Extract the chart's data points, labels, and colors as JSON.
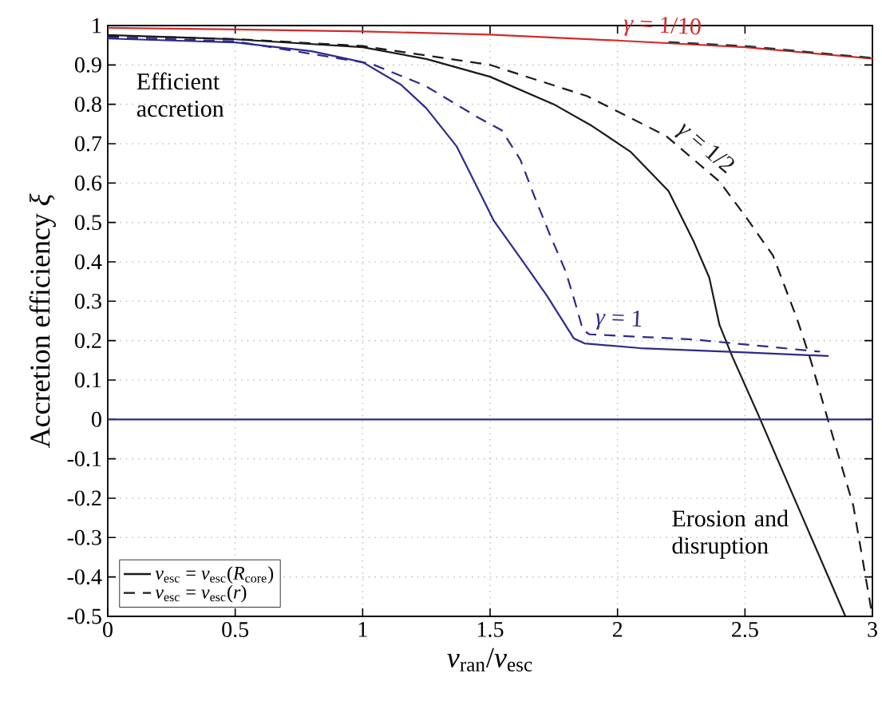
{
  "chart_data": {
    "type": "line",
    "xlabel": "*v*$_{ran}$/*v*$_{esc}$",
    "ylabel": "Accretion efficiency *ξ*",
    "xlim": [
      0,
      3
    ],
    "ylim": [
      -0.5,
      1.0
    ],
    "xticks": [
      0,
      0.5,
      1,
      1.5,
      2,
      2.5,
      3
    ],
    "yticks": [
      -0.5,
      -0.4,
      -0.3,
      -0.2,
      -0.1,
      0,
      0.1,
      0.2,
      0.3,
      0.4,
      0.5,
      0.6,
      0.7,
      0.8,
      0.9,
      1
    ],
    "grid": true,
    "legend": "bottom left",
    "series": [
      {
        "color": "#d42a2a",
        "x": [
          0,
          0.5,
          1,
          1.5,
          2,
          2.5,
          3
        ],
        "values": [
          0.994,
          0.99,
          0.985,
          0.977,
          0.962,
          0.945,
          0.916
        ]
      },
      {
        "color": "#333333",
        "line_style": "dashed",
        "x": [
          2.2,
          2.5,
          2.8,
          3
        ],
        "values": [
          0.958,
          0.948,
          0.93,
          0.918
        ]
      },
      {
        "name": "*v*$_{esc}$ = *v*$_{esc}$(*R*$_{core}$)",
        "color": "#1a1a1a",
        "x": [
          0,
          0.5,
          1,
          1.25,
          1.5,
          1.75,
          1.9,
          2.05,
          2.2,
          2.3,
          2.36,
          2.4,
          2.45,
          2.55,
          2.7,
          2.894
        ],
        "values": [
          0.976,
          0.965,
          0.945,
          0.915,
          0.87,
          0.8,
          0.745,
          0.68,
          0.58,
          0.45,
          0.36,
          0.24,
          0.16,
          0.015,
          -0.21,
          -0.5
        ]
      },
      {
        "name": "*v*$_{esc}$ = *v*$_{esc}$(*r*)",
        "color": "#1a1a1a",
        "line_style": "dashed",
        "x": [
          0,
          0.5,
          1,
          1.5,
          1.88,
          2.19,
          2.4,
          2.5,
          2.61,
          2.705,
          2.757,
          2.825,
          2.925,
          3
        ],
        "values": [
          0.974,
          0.966,
          0.948,
          0.9,
          0.821,
          0.72,
          0.604,
          0.517,
          0.416,
          0.254,
          0.152,
          0.0,
          -0.219,
          -0.5
        ]
      },
      {
        "color": "#2e2a8c",
        "x": [
          0,
          0.5,
          0.8,
          1.0,
          1.15,
          1.25,
          1.369,
          1.421,
          1.515,
          1.619,
          1.723,
          1.828,
          1.87,
          2.089,
          2.5,
          2.828
        ],
        "values": [
          0.967,
          0.957,
          0.935,
          0.907,
          0.85,
          0.79,
          0.693,
          0.626,
          0.504,
          0.41,
          0.314,
          0.206,
          0.193,
          0.181,
          0.17,
          0.161
        ]
      },
      {
        "color": "#2e2a8c",
        "line_style": "dashed",
        "x": [
          0,
          0.5,
          1.034,
          1.243,
          1.452,
          1.546,
          1.619,
          1.671,
          1.734,
          1.797,
          1.838,
          1.864,
          1.89,
          2.298,
          2.794
        ],
        "values": [
          0.97,
          0.96,
          0.903,
          0.848,
          0.767,
          0.734,
          0.659,
          0.571,
          0.47,
          0.375,
          0.287,
          0.227,
          0.216,
          0.203,
          0.172
        ]
      }
    ],
    "ref_lines": [
      {
        "axis": "y",
        "value": 0,
        "color": "#2e2a8c"
      }
    ],
    "annotations": [
      "Efficient accretion",
      "Erosion and disruption",
      {
        "text": "*γ* = 1/10",
        "x": 2.0,
        "y": 0.962
      },
      {
        "text": "*γ* = 1/2",
        "x": 2.19,
        "y": 0.72
      },
      {
        "text": "*γ* = 1",
        "x": 1.89,
        "y": 0.216
      }
    ]
  }
}
